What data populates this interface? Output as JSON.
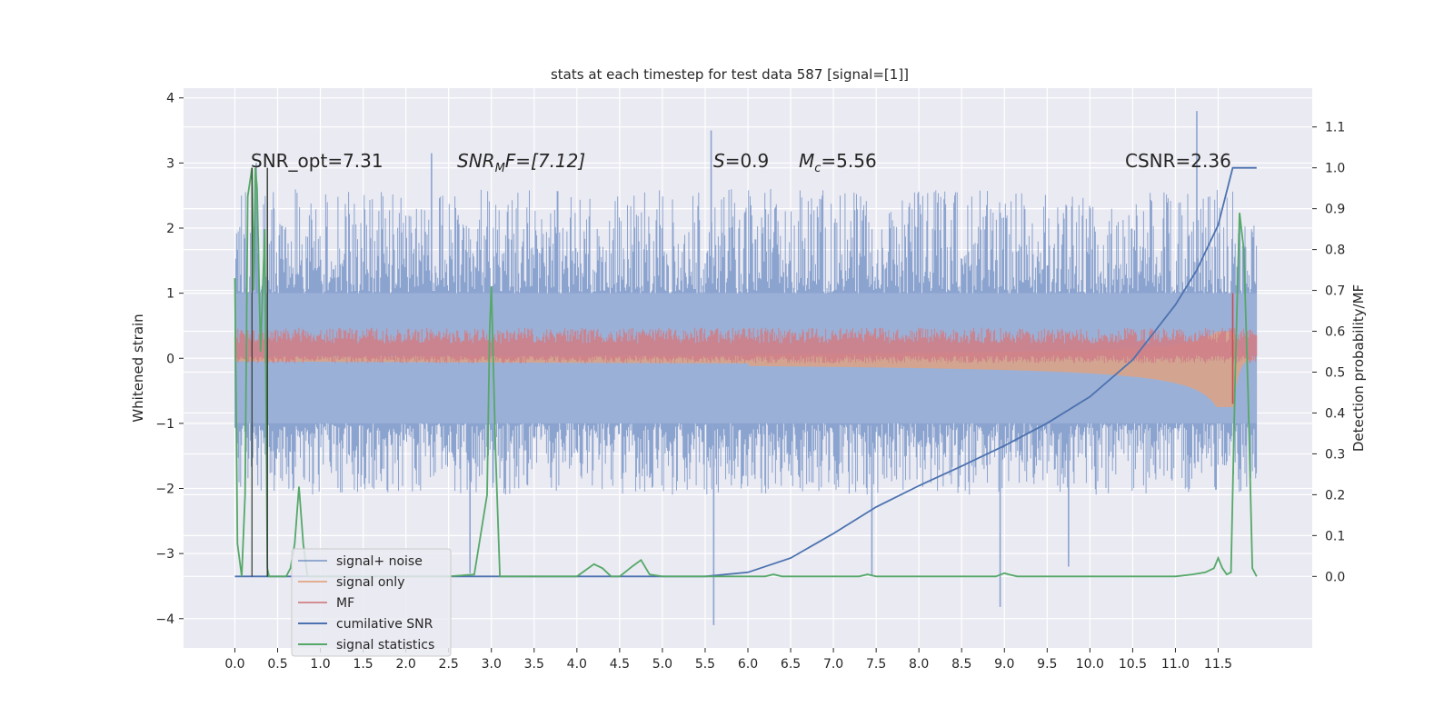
{
  "chart_data": {
    "type": "line",
    "title": "stats at each timestep for test data 587 [signal=[1]]",
    "ylabel": "Whitened strain",
    "y2label": "Detection probability/MF",
    "xlim": [
      -0.6,
      12.6
    ],
    "ylim": [
      -4.45,
      4.15
    ],
    "y2lim": [
      -0.175,
      1.195
    ],
    "x_ticks": [
      0.0,
      0.5,
      1.0,
      1.5,
      2.0,
      2.5,
      3.0,
      3.5,
      4.0,
      4.5,
      5.0,
      5.5,
      6.0,
      6.5,
      7.0,
      7.5,
      8.0,
      8.5,
      9.0,
      9.5,
      10.0,
      10.5,
      11.0,
      11.5
    ],
    "x_tick_labels": [
      "0.0",
      "0.5",
      "1.0",
      "1.5",
      "2.0",
      "2.5",
      "3.0",
      "3.5",
      "4.0",
      "4.5",
      "5.0",
      "5.5",
      "6.0",
      "6.5",
      "7.0",
      "7.5",
      "8.0",
      "8.5",
      "9.0",
      "9.5",
      "10.0",
      "10.5",
      "11.0",
      "11.5"
    ],
    "y_ticks": [
      -4,
      -3,
      -2,
      -1,
      0,
      1,
      2,
      3,
      4
    ],
    "y_tick_labels": [
      "−4",
      "−3",
      "−2",
      "−1",
      "0",
      "1",
      "2",
      "3",
      "4"
    ],
    "y2_ticks": [
      0.0,
      0.1,
      0.2,
      0.3,
      0.4,
      0.5,
      0.6,
      0.7,
      0.8,
      0.9,
      1.0,
      1.1
    ],
    "y2_tick_labels": [
      "0.0",
      "0.1",
      "0.2",
      "0.3",
      "0.4",
      "0.5",
      "0.6",
      "0.7",
      "0.8",
      "0.9",
      "1.0",
      "1.1"
    ],
    "grid": true,
    "legend_position": "lower-left",
    "annotations": {
      "snr_opt": "SNR_opt=7.31",
      "snr_mf_name": "SNR",
      "snr_mf_sub": "M",
      "snr_mf_rest": "F=[7.12]",
      "s_name": "S",
      "s_rest": "=0.9",
      "mc_name": "M",
      "mc_sub": "c",
      "mc_rest": "=5.56",
      "csnr": "CSNR=2.36"
    },
    "legend_entries": [
      {
        "label": "signal+ noise",
        "color": "#4c72b0"
      },
      {
        "label": "signal only",
        "color": "#dd8452"
      },
      {
        "label": "MF",
        "color": "#c44e52"
      },
      {
        "label": "cumilative SNR",
        "color": "#4c72b0"
      },
      {
        "label": "signal statistics",
        "color": "#55a868"
      }
    ],
    "series": [
      {
        "name": "signal+ noise",
        "axis": "left",
        "style": "noise-band",
        "t_start": 0.0,
        "t_end": 11.95,
        "envelope_lower": -2.1,
        "envelope_upper": 2.6,
        "inner_lower": -1.0,
        "inner_upper": 1.0,
        "outliers": [
          {
            "x": 0.25,
            "y": 3.0
          },
          {
            "x": 2.3,
            "y": 3.15
          },
          {
            "x": 5.57,
            "y": 3.5
          },
          {
            "x": 11.25,
            "y": 3.8
          },
          {
            "x": 5.6,
            "y": -4.1
          },
          {
            "x": 8.95,
            "y": -3.82
          },
          {
            "x": 2.75,
            "y": -3.3
          },
          {
            "x": 7.45,
            "y": -3.35
          },
          {
            "x": 9.75,
            "y": -3.2
          }
        ]
      },
      {
        "name": "signal only",
        "axis": "left",
        "style": "chirp",
        "t_start": 0.0,
        "t_end": 11.95,
        "t_merger": 11.68,
        "amp_start": 0.08,
        "amp_end": 0.75
      },
      {
        "name": "MF",
        "axis": "left",
        "style": "filled-band",
        "t_start": 0.0,
        "t_end": 11.95,
        "lower": -0.03,
        "upper": 0.35,
        "spike": {
          "x": 11.67,
          "y": 1.0
        }
      },
      {
        "name": "cumilative SNR",
        "axis": "right",
        "x": [
          0.0,
          5.5,
          6.0,
          6.5,
          7.0,
          7.5,
          8.0,
          8.5,
          9.0,
          9.5,
          10.0,
          10.5,
          11.0,
          11.25,
          11.5,
          11.67,
          11.95
        ],
        "y": [
          0.0,
          0.0,
          0.01,
          0.045,
          0.105,
          0.17,
          0.222,
          0.27,
          0.32,
          0.375,
          0.44,
          0.53,
          0.665,
          0.75,
          0.86,
          1.0,
          1.0
        ]
      },
      {
        "name": "signal statistics",
        "axis": "right",
        "x": [
          0.0,
          0.03,
          0.08,
          0.12,
          0.15,
          0.2,
          0.22,
          0.24,
          0.26,
          0.3,
          0.35,
          0.38,
          0.4,
          0.43,
          0.45,
          0.5,
          0.55,
          0.6,
          0.65,
          0.7,
          0.75,
          0.8,
          0.85,
          1.0,
          2.5,
          2.8,
          2.95,
          2.98,
          3.0,
          3.05,
          3.1,
          3.3,
          4.0,
          4.2,
          4.3,
          4.4,
          4.5,
          4.65,
          4.75,
          4.85,
          5.0,
          6.2,
          6.3,
          6.4,
          7.3,
          7.4,
          7.5,
          8.9,
          9.0,
          9.05,
          9.15,
          11.0,
          11.2,
          11.35,
          11.45,
          11.5,
          11.55,
          11.6,
          11.65,
          11.7,
          11.75,
          11.8,
          11.85,
          11.9,
          11.95
        ],
        "y": [
          0.73,
          0.08,
          0.0,
          0.2,
          0.93,
          1.0,
          0.7,
          1.0,
          0.95,
          0.55,
          0.85,
          0.02,
          0.0,
          0.0,
          0.0,
          0.0,
          0.0,
          0.0,
          0.02,
          0.08,
          0.22,
          0.08,
          0.0,
          0.0,
          0.0,
          0.005,
          0.2,
          0.6,
          0.71,
          0.3,
          0.0,
          0.0,
          0.0,
          0.03,
          0.02,
          0.0,
          0.0,
          0.025,
          0.04,
          0.005,
          0.0,
          0.0,
          0.005,
          0.0,
          0.0,
          0.005,
          0.0,
          0.0,
          0.008,
          0.005,
          0.0,
          0.0,
          0.005,
          0.01,
          0.02,
          0.045,
          0.02,
          0.005,
          0.01,
          0.5,
          0.89,
          0.8,
          0.45,
          0.02,
          0.0
        ]
      }
    ]
  }
}
